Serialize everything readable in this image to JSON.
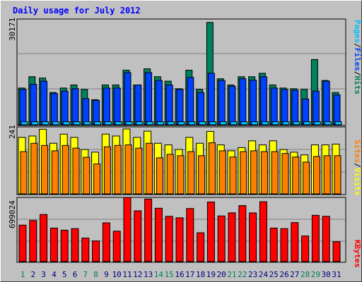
{
  "chart_data": [
    {
      "type": "bar",
      "title": "Daily usage for July 2012",
      "panel": "top",
      "ylabel_parts": [
        "Pages",
        "Files",
        "Hits"
      ],
      "ymax_label": "30171",
      "ylim": [
        0,
        30171
      ],
      "categories": [
        "1",
        "2",
        "3",
        "4",
        "5",
        "6",
        "7",
        "8",
        "9",
        "10",
        "11",
        "12",
        "13",
        "14",
        "15",
        "16",
        "17",
        "18",
        "19",
        "20",
        "21",
        "22",
        "23",
        "24",
        "25",
        "26",
        "27",
        "28",
        "29",
        "30",
        "31"
      ],
      "weekend_days": [
        "1",
        "7",
        "8",
        "14",
        "15",
        "21",
        "22",
        "28",
        "29"
      ],
      "series": [
        {
          "name": "Hits",
          "values": [
            10700,
            14000,
            13600,
            9400,
            10700,
            11600,
            10300,
            7300,
            11600,
            11600,
            15900,
            11600,
            16300,
            14000,
            12700,
            10500,
            15900,
            10300,
            29800,
            13400,
            11600,
            14000,
            14000,
            15000,
            11600,
            10700,
            10500,
            10300,
            19000,
            12900,
            9400
          ]
        },
        {
          "name": "Files",
          "values": [
            10300,
            11800,
            12700,
            9100,
            9800,
            10500,
            7600,
            7100,
            10700,
            10700,
            15200,
            11600,
            15200,
            12900,
            11600,
            10300,
            13800,
            9400,
            15000,
            12900,
            11200,
            13400,
            13000,
            14000,
            10700,
            10300,
            10100,
            7500,
            9800,
            12700,
            8700
          ]
        },
        {
          "name": "Pages",
          "values": [
            900,
            900,
            900,
            900,
            900,
            900,
            900,
            900,
            900,
            900,
            900,
            900,
            900,
            900,
            900,
            900,
            900,
            900,
            900,
            900,
            900,
            900,
            900,
            900,
            900,
            900,
            900,
            900,
            900,
            900,
            900
          ]
        }
      ]
    },
    {
      "type": "bar",
      "panel": "middle",
      "ylabel_parts": [
        "Sites",
        "Visits"
      ],
      "ymax_label": "241",
      "ylim": [
        0,
        241
      ],
      "series": [
        {
          "name": "Visits",
          "values": [
            210,
            215,
            240,
            188,
            222,
            210,
            165,
            155,
            222,
            215,
            241,
            210,
            233,
            188,
            182,
            165,
            210,
            188,
            232,
            182,
            160,
            172,
            197,
            182,
            197,
            165,
            155,
            145,
            182,
            182,
            185
          ]
        },
        {
          "name": "Sites",
          "values": [
            157,
            188,
            180,
            160,
            180,
            170,
            136,
            111,
            175,
            180,
            182,
            170,
            188,
            134,
            147,
            142,
            157,
            142,
            190,
            160,
            137,
            157,
            160,
            157,
            157,
            150,
            137,
            118,
            139,
            142,
            142
          ]
        }
      ]
    },
    {
      "type": "bar",
      "panel": "bottom",
      "ylabel_parts": [
        "KBytes"
      ],
      "ymax_label": "699024",
      "ylim": [
        0,
        699024
      ],
      "series": [
        {
          "name": "KBytes",
          "values": [
            397000,
            448000,
            513000,
            365000,
            342000,
            359000,
            256000,
            225000,
            422000,
            331000,
            699000,
            553000,
            681000,
            581000,
            493000,
            477000,
            578000,
            314000,
            649000,
            497000,
            531000,
            610000,
            530000,
            652000,
            365000,
            359000,
            425000,
            279000,
            504000,
            493000,
            216000
          ]
        }
      ]
    }
  ],
  "colors": {
    "hits": "#00805c",
    "files": "#0040ff",
    "pages": "#00c0ff",
    "visits": "#ffff00",
    "sites": "#ff8000",
    "kbytes": "#ff0000",
    "title": "#0000ff",
    "weekend": "#00805c",
    "weekday": "#000080"
  }
}
